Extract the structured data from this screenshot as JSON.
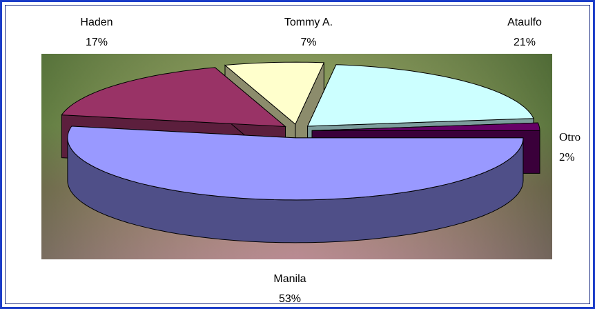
{
  "chart_data": {
    "type": "pie",
    "categories": [
      "Manila",
      "Haden",
      "Tommy A.",
      "Ataulfo",
      "Otro"
    ],
    "values": [
      53,
      17,
      7,
      21,
      2
    ],
    "value_labels": [
      "53%",
      "17%",
      "7%",
      "21%",
      "2%"
    ],
    "colors": [
      "#9999ff",
      "#993366",
      "#ffffcc",
      "#ccffff",
      "#660066"
    ],
    "side_colors": [
      "#4f4f88",
      "#5c1f3d",
      "#8c8c6c",
      "#7c9c9c",
      "#3a003a"
    ],
    "three_d": true,
    "exploded": true
  }
}
